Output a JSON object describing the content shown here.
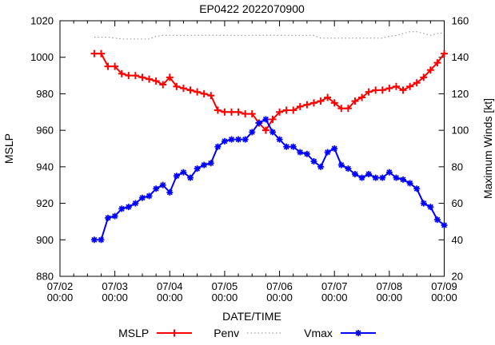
{
  "chart_data": {
    "type": "line",
    "title": "EP0422 2022070900",
    "xlabel": "DATE/TIME",
    "ylabel_left": "MSLP",
    "ylabel_right": "Maximum Winds [kt]",
    "grid": false,
    "legend_position": "below-x-axis",
    "x_unit": "hours since 07/02 00:00",
    "x_range": [
      0,
      168
    ],
    "x_minor_tick_interval_hours": 6,
    "x_major_ticks": [
      {
        "hour": 0,
        "line1": "07/02",
        "line2": "00:00"
      },
      {
        "hour": 24,
        "line1": "07/03",
        "line2": "00:00"
      },
      {
        "hour": 48,
        "line1": "07/04",
        "line2": "00:00"
      },
      {
        "hour": 72,
        "line1": "07/05",
        "line2": "00:00"
      },
      {
        "hour": 96,
        "line1": "07/06",
        "line2": "00:00"
      },
      {
        "hour": 120,
        "line1": "07/07",
        "line2": "00:00"
      },
      {
        "hour": 144,
        "line1": "07/08",
        "line2": "00:00"
      },
      {
        "hour": 168,
        "line1": "07/09",
        "line2": "00:00"
      }
    ],
    "ylim_left": [
      880,
      1020
    ],
    "y_ticks_left": [
      880,
      900,
      920,
      940,
      960,
      980,
      1000,
      1020
    ],
    "ylim_right": [
      20,
      160
    ],
    "y_ticks_right": [
      20,
      40,
      60,
      80,
      100,
      120,
      140,
      160
    ],
    "x_hours": [
      15,
      18,
      21,
      24,
      27,
      30,
      33,
      36,
      39,
      42,
      45,
      48,
      51,
      54,
      57,
      60,
      63,
      66,
      69,
      72,
      75,
      78,
      81,
      84,
      87,
      90,
      93,
      96,
      99,
      102,
      105,
      108,
      111,
      114,
      117,
      120,
      123,
      126,
      129,
      132,
      135,
      138,
      141,
      144,
      147,
      150,
      153,
      156,
      159,
      162,
      165,
      168
    ],
    "series": [
      {
        "name": "MSLP",
        "axis": "left",
        "unit": "mb",
        "color": "#ff0000",
        "line": "solid",
        "marker": "plus",
        "values": [
          1002,
          1002,
          995,
          995,
          991,
          990,
          990,
          989,
          988,
          987,
          985,
          989,
          984,
          983,
          982,
          981,
          980,
          979,
          971,
          970,
          970,
          970,
          969,
          969,
          964,
          960,
          966,
          970,
          971,
          971,
          973,
          974,
          975,
          976,
          978,
          975,
          972,
          972,
          976,
          978,
          981,
          982,
          982,
          983,
          984,
          982,
          984,
          986,
          989,
          993,
          997,
          1002
        ]
      },
      {
        "name": "Penv",
        "axis": "left",
        "unit": "mb",
        "color": "#8c8c8c",
        "line": "dotted",
        "marker": "none",
        "values": [
          1011,
          1011,
          1011,
          1010.5,
          1010,
          1010,
          1010,
          1010,
          1010,
          1011.5,
          1012,
          1012,
          1012,
          1012,
          1012,
          1012,
          1012,
          1012,
          1012,
          1012,
          1012,
          1012,
          1012,
          1012,
          1012,
          1012,
          1012,
          1012,
          1012,
          1012,
          1012,
          1012,
          1012,
          1010.5,
          1010.5,
          1010.5,
          1010.5,
          1010.5,
          1010.5,
          1010.5,
          1010.5,
          1010.5,
          1010.5,
          1011.5,
          1012,
          1013,
          1014,
          1014,
          1013,
          1012,
          1013,
          1013.5
        ]
      },
      {
        "name": "Vmax",
        "axis": "right",
        "unit": "kt",
        "color": "#0000ff",
        "line": "solid",
        "marker": "asterisk",
        "values": [
          40,
          40,
          52,
          53,
          57,
          58,
          60,
          63,
          64,
          68,
          70,
          66,
          75,
          77,
          74,
          79,
          81,
          82,
          91,
          94,
          95,
          95,
          95,
          99,
          104,
          106,
          99,
          95,
          91,
          91,
          88,
          87,
          83,
          80,
          88,
          90,
          81,
          79,
          76,
          74,
          76,
          74,
          74,
          77,
          74,
          73,
          71,
          68,
          60,
          58,
          51,
          48
        ]
      }
    ]
  }
}
